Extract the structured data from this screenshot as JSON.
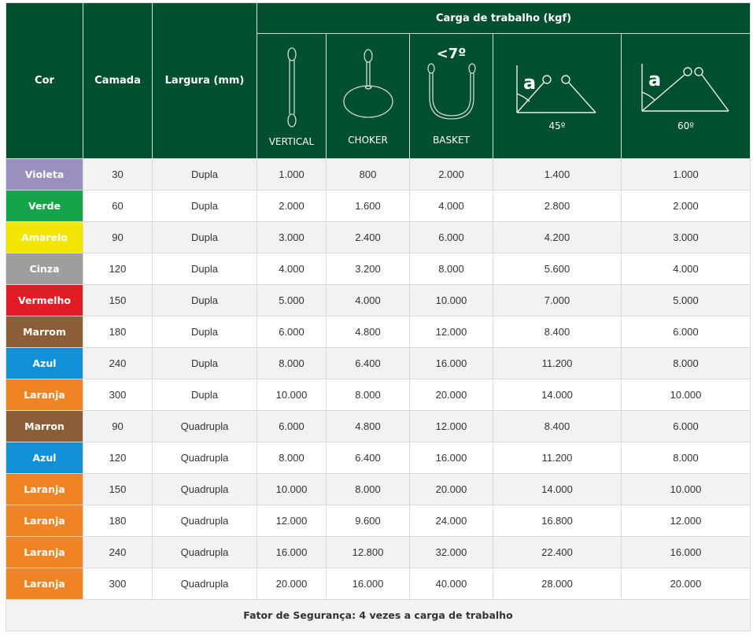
{
  "header": {
    "cor": "Cor",
    "camada": "Camada",
    "largura": "Largura (mm)",
    "carga": "Carga de trabalho (kgf)",
    "configs": [
      {
        "label": "VERTICAL",
        "icon": "vertical-sling-icon"
      },
      {
        "label": "CHOKER",
        "icon": "choker-sling-icon"
      },
      {
        "label": "BASKET",
        "icon": "basket-sling-icon",
        "angle_label": "<7º"
      },
      {
        "label": "45º",
        "icon": "angle-45-sling-icon",
        "angle_letter": "a"
      },
      {
        "label": "60º",
        "icon": "angle-60-sling-icon",
        "angle_letter": "a"
      }
    ]
  },
  "rows": [
    {
      "cor": "Violeta",
      "color": "#9b8fc0",
      "camada": "30",
      "largura": "Dupla",
      "vertical": "1.000",
      "choker": "800",
      "basket": "2.000",
      "a45": "1.400",
      "a60": "1.000"
    },
    {
      "cor": "Verde",
      "color": "#14a44a",
      "camada": "60",
      "largura": "Dupla",
      "vertical": "2.000",
      "choker": "1.600",
      "basket": "4.000",
      "a45": "2.800",
      "a60": "2.000"
    },
    {
      "cor": "Amarelo",
      "color": "#f2e500",
      "camada": "90",
      "largura": "Dupla",
      "vertical": "3.000",
      "choker": "2.400",
      "basket": "6.000",
      "a45": "4.200",
      "a60": "3.000"
    },
    {
      "cor": "Cinza",
      "color": "#9e9e9e",
      "camada": "120",
      "largura": "Dupla",
      "vertical": "4.000",
      "choker": "3.200",
      "basket": "8.000",
      "a45": "5.600",
      "a60": "4.000"
    },
    {
      "cor": "Vermelho",
      "color": "#e11c24",
      "camada": "150",
      "largura": "Dupla",
      "vertical": "5.000",
      "choker": "4.000",
      "basket": "10.000",
      "a45": "7.000",
      "a60": "5.000"
    },
    {
      "cor": "Marrom",
      "color": "#8b5e37",
      "camada": "180",
      "largura": "Dupla",
      "vertical": "6.000",
      "choker": "4.800",
      "basket": "12.000",
      "a45": "8.400",
      "a60": "6.000"
    },
    {
      "cor": "Azul",
      "color": "#1190d8",
      "camada": "240",
      "largura": "Dupla",
      "vertical": "8.000",
      "choker": "6.400",
      "basket": "16.000",
      "a45": "11.200",
      "a60": "8.000"
    },
    {
      "cor": "Laranja",
      "color": "#f08425",
      "camada": "300",
      "largura": "Dupla",
      "vertical": "10.000",
      "choker": "8.000",
      "basket": "20.000",
      "a45": "14.000",
      "a60": "10.000"
    },
    {
      "cor": "Marron",
      "color": "#8b5e37",
      "camada": "90",
      "largura": "Quadrupla",
      "vertical": "6.000",
      "choker": "4.800",
      "basket": "12.000",
      "a45": "8.400",
      "a60": "6.000"
    },
    {
      "cor": "Azul",
      "color": "#1190d8",
      "camada": "120",
      "largura": "Quadrupla",
      "vertical": "8.000",
      "choker": "6.400",
      "basket": "16.000",
      "a45": "11.200",
      "a60": "8.000"
    },
    {
      "cor": "Laranja",
      "color": "#f08425",
      "camada": "150",
      "largura": "Quadrupla",
      "vertical": "10.000",
      "choker": "8.000",
      "basket": "20.000",
      "a45": "14.000",
      "a60": "10.000"
    },
    {
      "cor": "Laranja",
      "color": "#f08425",
      "camada": "180",
      "largura": "Quadrupla",
      "vertical": "12.000",
      "choker": "9.600",
      "basket": "24.000",
      "a45": "16.800",
      "a60": "12.000"
    },
    {
      "cor": "Laranja",
      "color": "#f08425",
      "camada": "240",
      "largura": "Quadrupla",
      "vertical": "16.000",
      "choker": "12.800",
      "basket": "32.000",
      "a45": "22.400",
      "a60": "16.000"
    },
    {
      "cor": "Laranja",
      "color": "#f08425",
      "camada": "300",
      "largura": "Quadrupla",
      "vertical": "20.000",
      "choker": "16.000",
      "basket": "40.000",
      "a45": "28.000",
      "a60": "20.000"
    }
  ],
  "footer": "Fator de Segurança: 4 vezes a carga de trabalho",
  "colors": {
    "header_bg": "#005030",
    "row_alt": "#f2f2f2"
  }
}
